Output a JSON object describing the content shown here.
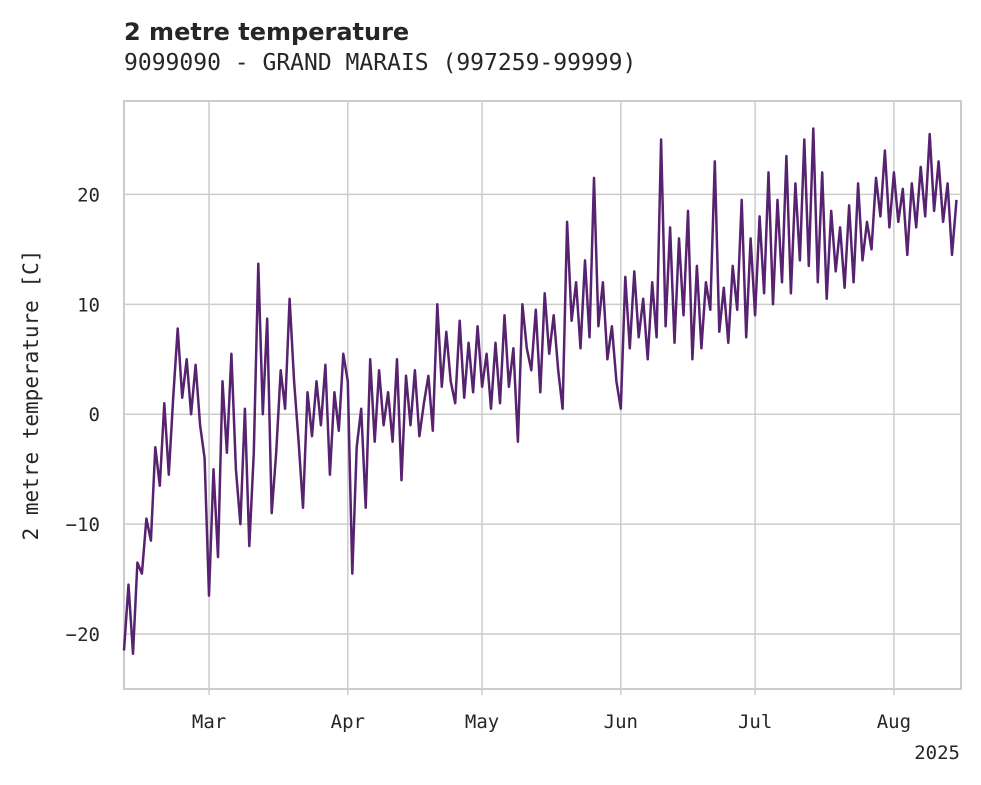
{
  "chart_data": {
    "type": "line",
    "title": "2 metre temperature",
    "subtitle": "9099090 - GRAND MARAIS (997259-99999)",
    "ylabel": "2 metre temperature [C]",
    "xlabel": "",
    "year_label": "2025",
    "xlim": [
      "2025-02-10",
      "2025-08-16"
    ],
    "ylim": [
      -25,
      28.5
    ],
    "yticks": [
      -20,
      -10,
      0,
      10,
      20
    ],
    "xticks": [
      {
        "date": "2025-03-01",
        "label": "Mar"
      },
      {
        "date": "2025-04-01",
        "label": "Apr"
      },
      {
        "date": "2025-05-01",
        "label": "May"
      },
      {
        "date": "2025-06-01",
        "label": "Jun"
      },
      {
        "date": "2025-07-01",
        "label": "Jul"
      },
      {
        "date": "2025-08-01",
        "label": "Aug"
      }
    ],
    "grid": true,
    "series": [
      {
        "color": "#57226f",
        "values": [
          [
            "2025-02-10",
            -21.5
          ],
          [
            "2025-02-11",
            -15.5
          ],
          [
            "2025-02-12",
            -21.8
          ],
          [
            "2025-02-13",
            -13.5
          ],
          [
            "2025-02-14",
            -14.5
          ],
          [
            "2025-02-15",
            -9.5
          ],
          [
            "2025-02-16",
            -11.5
          ],
          [
            "2025-02-17",
            -3.0
          ],
          [
            "2025-02-18",
            -6.5
          ],
          [
            "2025-02-19",
            1.0
          ],
          [
            "2025-02-20",
            -5.5
          ],
          [
            "2025-02-21",
            1.5
          ],
          [
            "2025-02-22",
            7.8
          ],
          [
            "2025-02-23",
            1.5
          ],
          [
            "2025-02-24",
            5.0
          ],
          [
            "2025-02-25",
            0.0
          ],
          [
            "2025-02-26",
            4.5
          ],
          [
            "2025-02-27",
            -1.0
          ],
          [
            "2025-02-28",
            -4.0
          ],
          [
            "2025-03-01",
            -16.5
          ],
          [
            "2025-03-02",
            -5.0
          ],
          [
            "2025-03-03",
            -13.0
          ],
          [
            "2025-03-04",
            3.0
          ],
          [
            "2025-03-05",
            -3.5
          ],
          [
            "2025-03-06",
            5.5
          ],
          [
            "2025-03-07",
            -5.0
          ],
          [
            "2025-03-08",
            -10.0
          ],
          [
            "2025-03-09",
            0.5
          ],
          [
            "2025-03-10",
            -12.0
          ],
          [
            "2025-03-11",
            -3.5
          ],
          [
            "2025-03-12",
            13.7
          ],
          [
            "2025-03-13",
            0.0
          ],
          [
            "2025-03-14",
            8.7
          ],
          [
            "2025-03-15",
            -9.0
          ],
          [
            "2025-03-16",
            -3.5
          ],
          [
            "2025-03-17",
            4.0
          ],
          [
            "2025-03-18",
            0.5
          ],
          [
            "2025-03-19",
            10.5
          ],
          [
            "2025-03-20",
            3.0
          ],
          [
            "2025-03-21",
            -2.5
          ],
          [
            "2025-03-22",
            -8.5
          ],
          [
            "2025-03-23",
            2.0
          ],
          [
            "2025-03-24",
            -2.0
          ],
          [
            "2025-03-25",
            3.0
          ],
          [
            "2025-03-26",
            -1.0
          ],
          [
            "2025-03-27",
            4.5
          ],
          [
            "2025-03-28",
            -5.5
          ],
          [
            "2025-03-29",
            2.0
          ],
          [
            "2025-03-30",
            -1.5
          ],
          [
            "2025-03-31",
            5.5
          ],
          [
            "2025-04-01",
            3.0
          ],
          [
            "2025-04-02",
            -14.5
          ],
          [
            "2025-04-03",
            -3.0
          ],
          [
            "2025-04-04",
            0.5
          ],
          [
            "2025-04-05",
            -8.5
          ],
          [
            "2025-04-06",
            5.0
          ],
          [
            "2025-04-07",
            -2.5
          ],
          [
            "2025-04-08",
            4.0
          ],
          [
            "2025-04-09",
            -1.0
          ],
          [
            "2025-04-10",
            2.0
          ],
          [
            "2025-04-11",
            -2.5
          ],
          [
            "2025-04-12",
            5.0
          ],
          [
            "2025-04-13",
            -6.0
          ],
          [
            "2025-04-14",
            3.5
          ],
          [
            "2025-04-15",
            -1.0
          ],
          [
            "2025-04-16",
            4.0
          ],
          [
            "2025-04-17",
            -2.0
          ],
          [
            "2025-04-18",
            1.0
          ],
          [
            "2025-04-19",
            3.5
          ],
          [
            "2025-04-20",
            -1.5
          ],
          [
            "2025-04-21",
            10.0
          ],
          [
            "2025-04-22",
            2.5
          ],
          [
            "2025-04-23",
            7.5
          ],
          [
            "2025-04-24",
            3.0
          ],
          [
            "2025-04-25",
            1.0
          ],
          [
            "2025-04-26",
            8.5
          ],
          [
            "2025-04-27",
            1.5
          ],
          [
            "2025-04-28",
            6.5
          ],
          [
            "2025-04-29",
            2.0
          ],
          [
            "2025-04-30",
            8.0
          ],
          [
            "2025-05-01",
            2.5
          ],
          [
            "2025-05-02",
            5.5
          ],
          [
            "2025-05-03",
            0.5
          ],
          [
            "2025-05-04",
            6.5
          ],
          [
            "2025-05-05",
            1.0
          ],
          [
            "2025-05-06",
            9.0
          ],
          [
            "2025-05-07",
            2.5
          ],
          [
            "2025-05-08",
            6.0
          ],
          [
            "2025-05-09",
            -2.5
          ],
          [
            "2025-05-10",
            10.0
          ],
          [
            "2025-05-11",
            6.0
          ],
          [
            "2025-05-12",
            4.0
          ],
          [
            "2025-05-13",
            9.5
          ],
          [
            "2025-05-14",
            2.0
          ],
          [
            "2025-05-15",
            11.0
          ],
          [
            "2025-05-16",
            5.5
          ],
          [
            "2025-05-17",
            9.0
          ],
          [
            "2025-05-18",
            4.0
          ],
          [
            "2025-05-19",
            0.5
          ],
          [
            "2025-05-20",
            17.5
          ],
          [
            "2025-05-21",
            8.5
          ],
          [
            "2025-05-22",
            12.0
          ],
          [
            "2025-05-23",
            6.0
          ],
          [
            "2025-05-24",
            14.0
          ],
          [
            "2025-05-25",
            7.0
          ],
          [
            "2025-05-26",
            21.5
          ],
          [
            "2025-05-27",
            8.0
          ],
          [
            "2025-05-28",
            12.0
          ],
          [
            "2025-05-29",
            5.0
          ],
          [
            "2025-05-30",
            8.0
          ],
          [
            "2025-05-31",
            3.0
          ],
          [
            "2025-06-01",
            0.5
          ],
          [
            "2025-06-02",
            12.5
          ],
          [
            "2025-06-03",
            6.0
          ],
          [
            "2025-06-04",
            13.0
          ],
          [
            "2025-06-05",
            7.0
          ],
          [
            "2025-06-06",
            10.5
          ],
          [
            "2025-06-07",
            5.0
          ],
          [
            "2025-06-08",
            12.0
          ],
          [
            "2025-06-09",
            7.0
          ],
          [
            "2025-06-10",
            25.0
          ],
          [
            "2025-06-11",
            8.0
          ],
          [
            "2025-06-12",
            17.0
          ],
          [
            "2025-06-13",
            6.5
          ],
          [
            "2025-06-14",
            16.0
          ],
          [
            "2025-06-15",
            9.0
          ],
          [
            "2025-06-16",
            18.5
          ],
          [
            "2025-06-17",
            5.0
          ],
          [
            "2025-06-18",
            13.5
          ],
          [
            "2025-06-19",
            6.0
          ],
          [
            "2025-06-20",
            12.0
          ],
          [
            "2025-06-21",
            9.5
          ],
          [
            "2025-06-22",
            23.0
          ],
          [
            "2025-06-23",
            7.5
          ],
          [
            "2025-06-24",
            11.5
          ],
          [
            "2025-06-25",
            6.5
          ],
          [
            "2025-06-26",
            13.5
          ],
          [
            "2025-06-27",
            9.5
          ],
          [
            "2025-06-28",
            19.5
          ],
          [
            "2025-06-29",
            7.0
          ],
          [
            "2025-06-30",
            16.0
          ],
          [
            "2025-07-01",
            9.0
          ],
          [
            "2025-07-02",
            18.0
          ],
          [
            "2025-07-03",
            11.0
          ],
          [
            "2025-07-04",
            22.0
          ],
          [
            "2025-07-05",
            10.0
          ],
          [
            "2025-07-06",
            19.5
          ],
          [
            "2025-07-07",
            12.0
          ],
          [
            "2025-07-08",
            23.5
          ],
          [
            "2025-07-09",
            11.0
          ],
          [
            "2025-07-10",
            21.0
          ],
          [
            "2025-07-11",
            14.0
          ],
          [
            "2025-07-12",
            25.0
          ],
          [
            "2025-07-13",
            13.5
          ],
          [
            "2025-07-14",
            26.0
          ],
          [
            "2025-07-15",
            12.0
          ],
          [
            "2025-07-16",
            22.0
          ],
          [
            "2025-07-17",
            10.5
          ],
          [
            "2025-07-18",
            18.5
          ],
          [
            "2025-07-19",
            13.0
          ],
          [
            "2025-07-20",
            17.0
          ],
          [
            "2025-07-21",
            11.5
          ],
          [
            "2025-07-22",
            19.0
          ],
          [
            "2025-07-23",
            12.0
          ],
          [
            "2025-07-24",
            21.0
          ],
          [
            "2025-07-25",
            14.0
          ],
          [
            "2025-07-26",
            17.5
          ],
          [
            "2025-07-27",
            15.0
          ],
          [
            "2025-07-28",
            21.5
          ],
          [
            "2025-07-29",
            18.0
          ],
          [
            "2025-07-30",
            24.0
          ],
          [
            "2025-07-31",
            17.0
          ],
          [
            "2025-08-01",
            22.0
          ],
          [
            "2025-08-02",
            17.5
          ],
          [
            "2025-08-03",
            20.5
          ],
          [
            "2025-08-04",
            14.5
          ],
          [
            "2025-08-05",
            21.0
          ],
          [
            "2025-08-06",
            17.0
          ],
          [
            "2025-08-07",
            22.5
          ],
          [
            "2025-08-08",
            18.0
          ],
          [
            "2025-08-09",
            25.5
          ],
          [
            "2025-08-10",
            18.5
          ],
          [
            "2025-08-11",
            23.0
          ],
          [
            "2025-08-12",
            17.5
          ],
          [
            "2025-08-13",
            21.0
          ],
          [
            "2025-08-14",
            14.5
          ],
          [
            "2025-08-15",
            19.5
          ]
        ]
      }
    ]
  }
}
